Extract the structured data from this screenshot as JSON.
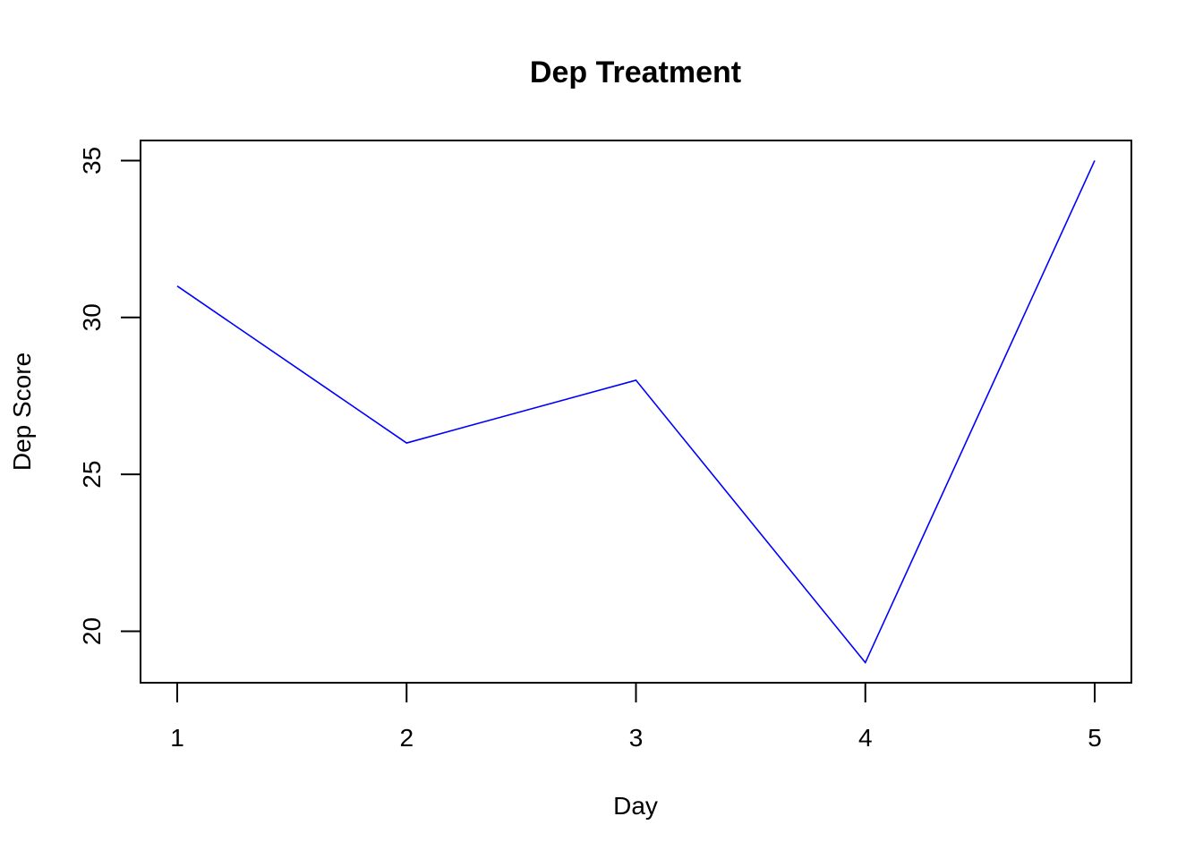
{
  "chart_data": {
    "type": "line",
    "title": "Dep Treatment",
    "xlabel": "Day",
    "ylabel": "Dep Score",
    "x": [
      1,
      2,
      3,
      4,
      5
    ],
    "series": [
      {
        "values": [
          31,
          26,
          28,
          19,
          35
        ],
        "color": "#0000ff"
      }
    ],
    "xticks": [
      "1",
      "2",
      "3",
      "4",
      "5"
    ],
    "yticks": [
      "20",
      "25",
      "30",
      "35"
    ],
    "xlim": [
      0.84,
      5.16
    ],
    "ylim": [
      18.36,
      35.64
    ],
    "grid": false,
    "legend": "none"
  }
}
